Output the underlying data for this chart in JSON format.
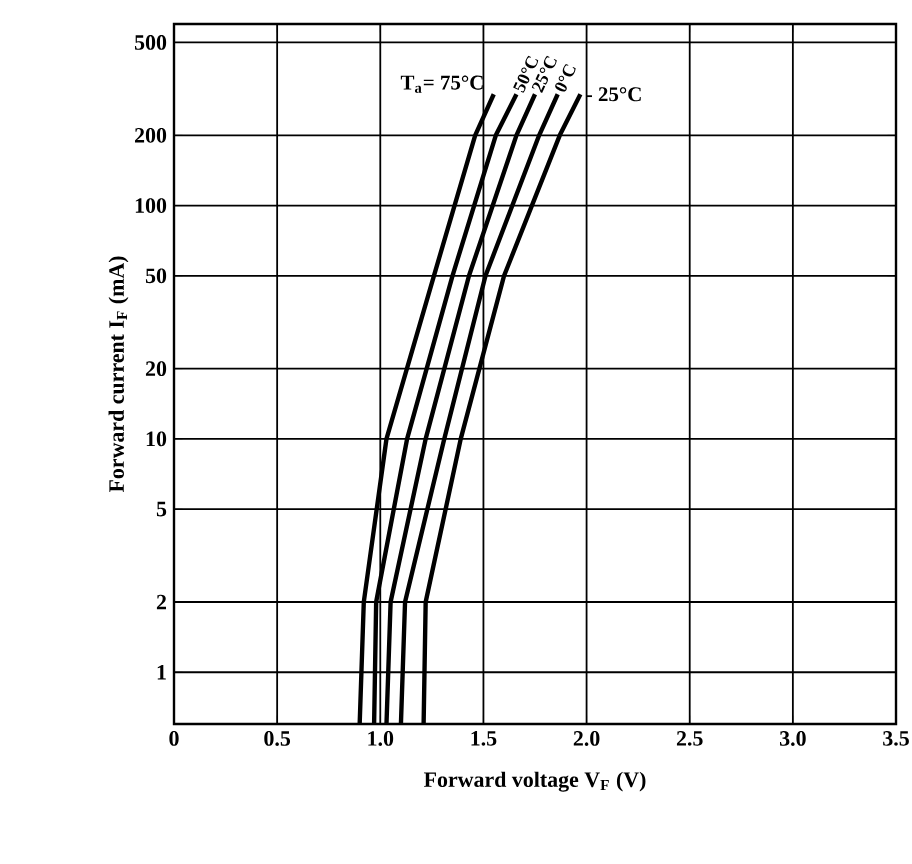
{
  "chart_data": {
    "type": "line",
    "xlabel": "Forward voltage V$_{F}$ (V)",
    "ylabel": "Forward current I$_{F}$ (mA)",
    "log": "y",
    "grid": true,
    "marker": "none",
    "xlim": [
      0,
      3.5
    ],
    "xticks": [
      0,
      {
        "value": 0.5,
        "label": "0.5"
      },
      {
        "value": 1,
        "label": "1.0"
      },
      {
        "value": 1.5,
        "label": "1.5"
      },
      {
        "value": 2,
        "label": "2.0"
      },
      {
        "value": 2.5,
        "label": "2.5"
      },
      {
        "value": 3,
        "label": "3.0"
      },
      {
        "value": 3.5,
        "label": "3.5"
      }
    ],
    "ylim": [
      0.6,
      600
    ],
    "yticks": [
      1,
      2,
      5,
      10,
      20,
      50,
      100,
      200,
      500
    ],
    "series": [
      {
        "name": "T$_{a}$= 75°C",
        "color": "#000000",
        "x": [
          0.9,
          0.92,
          1.03,
          1.26,
          1.46,
          1.55
        ],
        "values": [
          0.6,
          2,
          10,
          50,
          200,
          300
        ]
      },
      {
        "name": "50°C",
        "color": "#000000",
        "x": [
          0.97,
          0.98,
          1.13,
          1.35,
          1.56,
          1.66
        ],
        "values": [
          0.6,
          2,
          10,
          50,
          200,
          300
        ]
      },
      {
        "name": "25°C",
        "color": "#000000",
        "x": [
          1.03,
          1.05,
          1.22,
          1.43,
          1.66,
          1.75
        ],
        "values": [
          0.6,
          2,
          10,
          50,
          200,
          300
        ]
      },
      {
        "name": "0°C",
        "color": "#000000",
        "x": [
          1.1,
          1.12,
          1.31,
          1.51,
          1.77,
          1.86
        ],
        "values": [
          0.6,
          2,
          10,
          50,
          200,
          300
        ]
      },
      {
        "name": "- 25°C",
        "color": "#000000",
        "x": [
          1.21,
          1.22,
          1.39,
          1.6,
          1.87,
          1.97
        ],
        "values": [
          0.6,
          2,
          10,
          50,
          200,
          300
        ]
      }
    ]
  }
}
